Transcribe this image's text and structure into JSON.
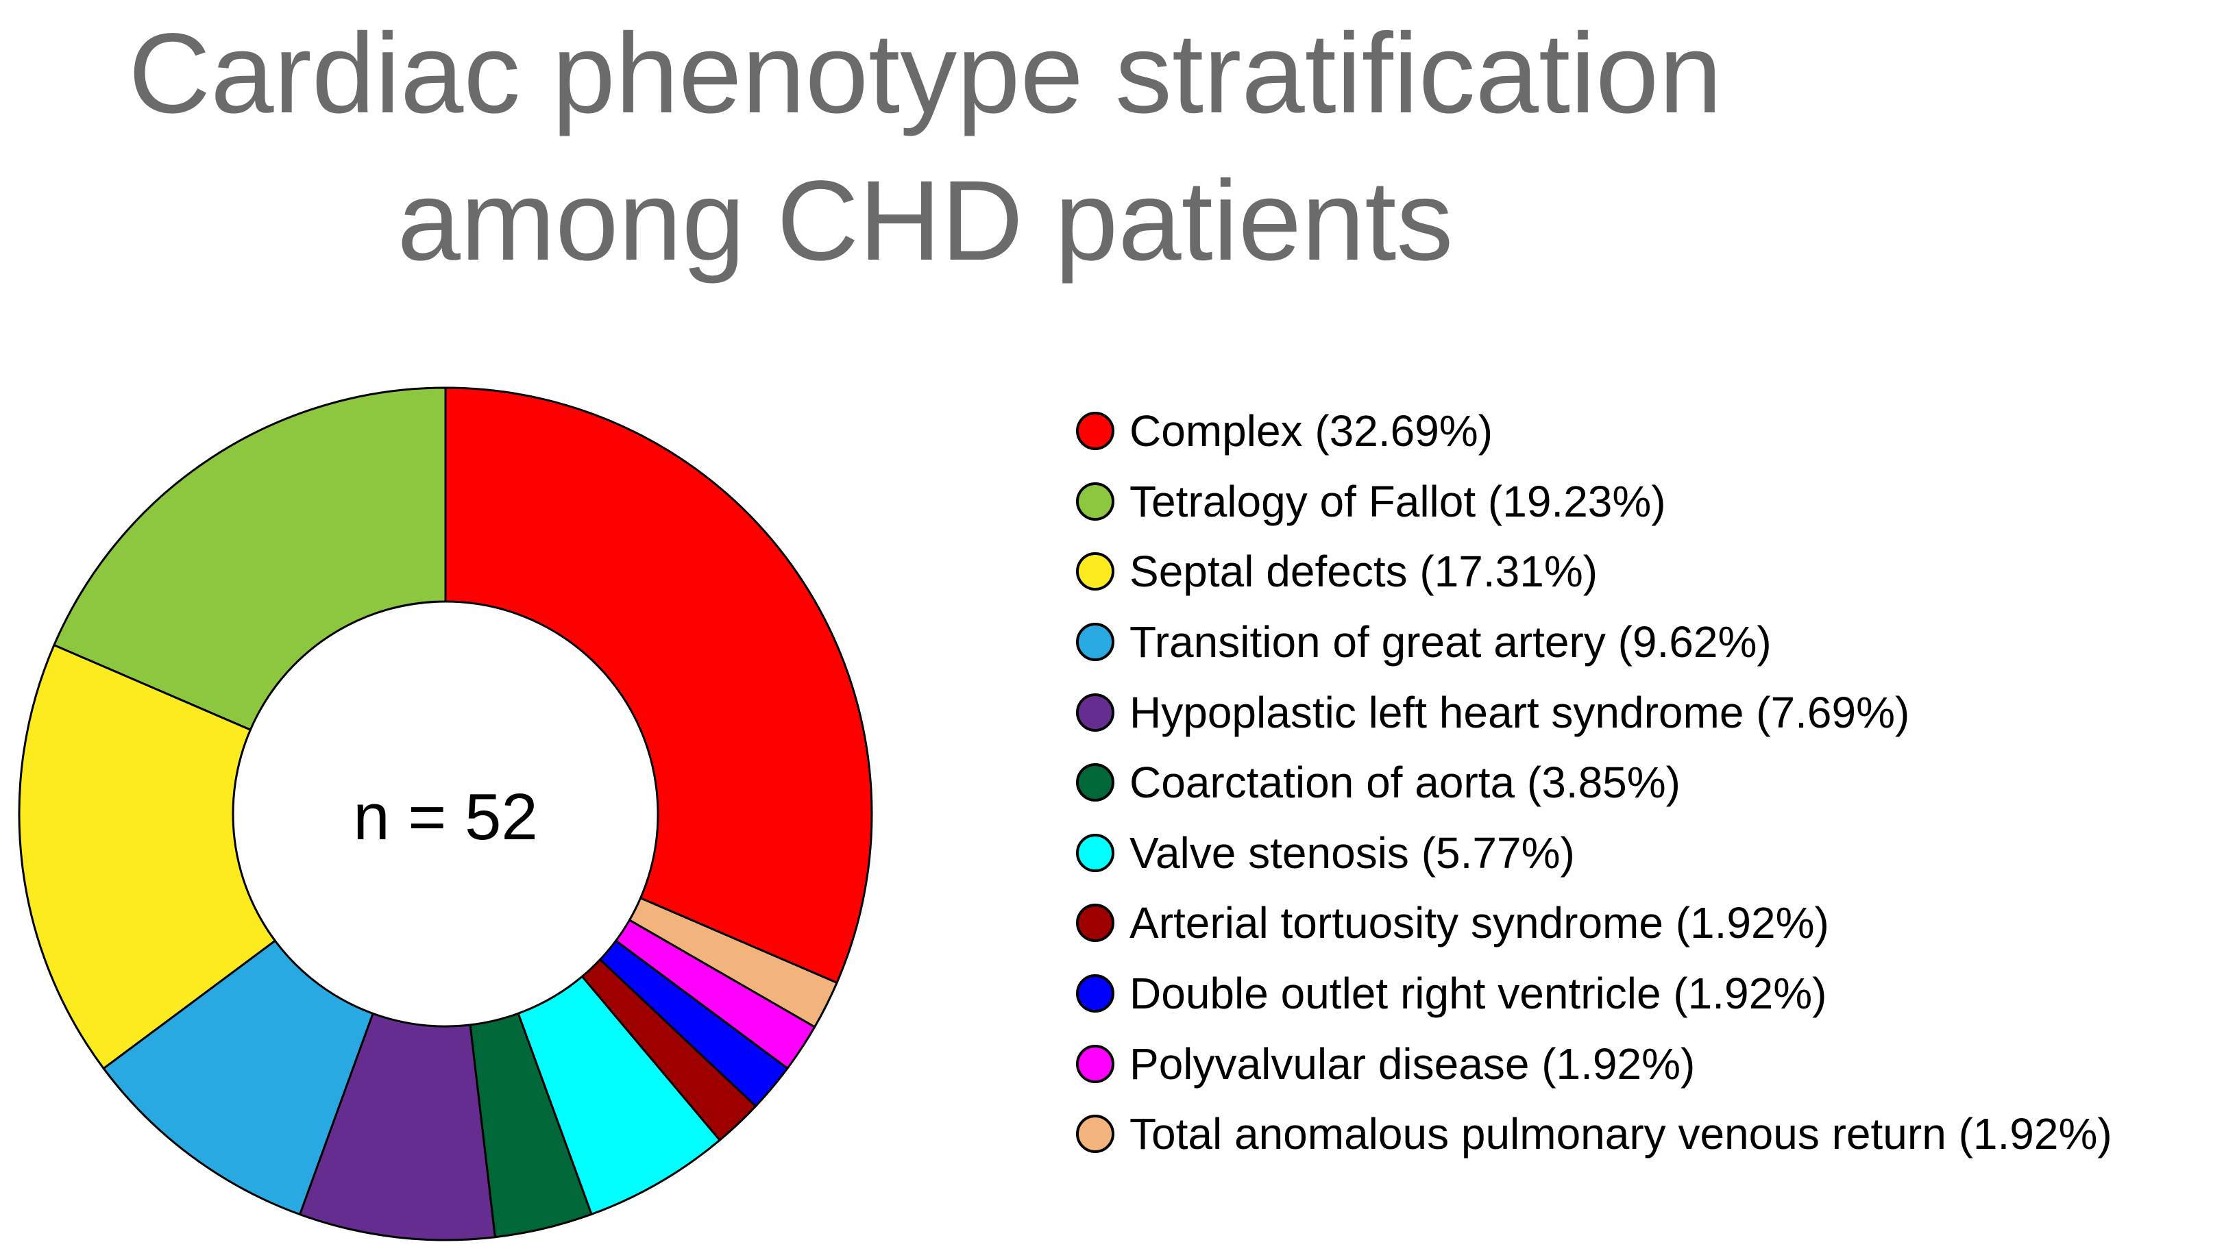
{
  "chart_data": {
    "type": "pie",
    "donut": true,
    "title": "Cardiac phenotype stratification among CHD patients",
    "title_lines": [
      "Cardiac phenotype stratification",
      "among CHD patients"
    ],
    "center_label": "n = 52",
    "total": 52,
    "legend_position": "right",
    "slices": [
      {
        "name": "Complex",
        "label": "Complex (32.69%)",
        "percent": 32.69,
        "color": "#FF0000"
      },
      {
        "name": "Tetralogy of Fallot",
        "label": "Tetralogy of Fallot (19.23%)",
        "percent": 19.23,
        "color": "#8DC63F"
      },
      {
        "name": "Septal defects",
        "label": "Septal defects (17.31%)",
        "percent": 17.31,
        "color": "#FCEB1E"
      },
      {
        "name": "Transition of great artery",
        "label": "Transition of great artery (9.62%)",
        "percent": 9.62,
        "color": "#29A9E1"
      },
      {
        "name": "Hypoplastic left heart syndrome",
        "label": "Hypoplastic left heart syndrome (7.69%)",
        "percent": 7.69,
        "color": "#662D91"
      },
      {
        "name": "Coarctation of aorta",
        "label": "Coarctation of aorta (3.85%)",
        "percent": 3.85,
        "color": "#006838"
      },
      {
        "name": "Valve stenosis",
        "label": "Valve stenosis (5.77%)",
        "percent": 5.77,
        "color": "#00FFFF"
      },
      {
        "name": "Arterial tortuosity syndrome",
        "label": "Arterial tortuosity syndrome (1.92%)",
        "percent": 1.92,
        "color": "#9E0000"
      },
      {
        "name": "Double outlet right ventricle",
        "label": "Double outlet right ventricle (1.92%)",
        "percent": 1.92,
        "color": "#0000FF"
      },
      {
        "name": "Polyvalvular disease",
        "label": "Polyvalvular disease (1.92%)",
        "percent": 1.92,
        "color": "#FF00FF"
      },
      {
        "name": "Total anomalous pulmonary venous return",
        "label": "Total anomalous pulmonary venous return (1.92%)",
        "percent": 1.92,
        "color": "#F2B47C"
      }
    ],
    "draw_order": [
      "Tetralogy of Fallot",
      "Septal defects",
      "Transition of great artery",
      "Hypoplastic left heart syndrome",
      "Coarctation of aorta",
      "Valve stenosis",
      "Arterial tortuosity syndrome",
      "Double outlet right ventricle",
      "Polyvalvular disease",
      "Total anomalous pulmonary venous return",
      "Complex"
    ]
  }
}
